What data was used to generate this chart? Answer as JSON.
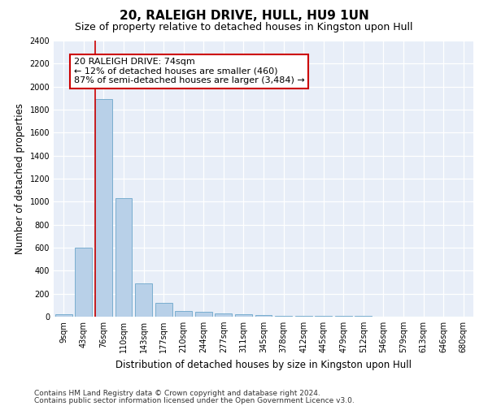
{
  "title": "20, RALEIGH DRIVE, HULL, HU9 1UN",
  "subtitle": "Size of property relative to detached houses in Kingston upon Hull",
  "xlabel": "Distribution of detached houses by size in Kingston upon Hull",
  "ylabel": "Number of detached properties",
  "bar_color": "#b8d0e8",
  "bar_edge_color": "#7aaed0",
  "categories": [
    "9sqm",
    "43sqm",
    "76sqm",
    "110sqm",
    "143sqm",
    "177sqm",
    "210sqm",
    "244sqm",
    "277sqm",
    "311sqm",
    "345sqm",
    "378sqm",
    "412sqm",
    "445sqm",
    "479sqm",
    "512sqm",
    "546sqm",
    "579sqm",
    "613sqm",
    "646sqm",
    "680sqm"
  ],
  "values": [
    20,
    600,
    1890,
    1030,
    290,
    120,
    50,
    45,
    30,
    20,
    15,
    10,
    10,
    8,
    5,
    5,
    3,
    3,
    2,
    2,
    2
  ],
  "annotation_line1": "20 RALEIGH DRIVE: 74sqm",
  "annotation_line2": "← 12% of detached houses are smaller (460)",
  "annotation_line3": "87% of semi-detached houses are larger (3,484) →",
  "annotation_box_color": "#ffffff",
  "annotation_box_edge_color": "#cc0000",
  "footer1": "Contains HM Land Registry data © Crown copyright and database right 2024.",
  "footer2": "Contains public sector information licensed under the Open Government Licence v3.0.",
  "ylim": [
    0,
    2400
  ],
  "yticks": [
    0,
    200,
    400,
    600,
    800,
    1000,
    1200,
    1400,
    1600,
    1800,
    2000,
    2200,
    2400
  ],
  "bg_color": "#e8eef8",
  "grid_color": "#ffffff",
  "title_fontsize": 11,
  "subtitle_fontsize": 9,
  "axis_label_fontsize": 8.5,
  "tick_fontsize": 7,
  "annotation_fontsize": 8,
  "footer_fontsize": 6.5,
  "red_line_index": 2
}
